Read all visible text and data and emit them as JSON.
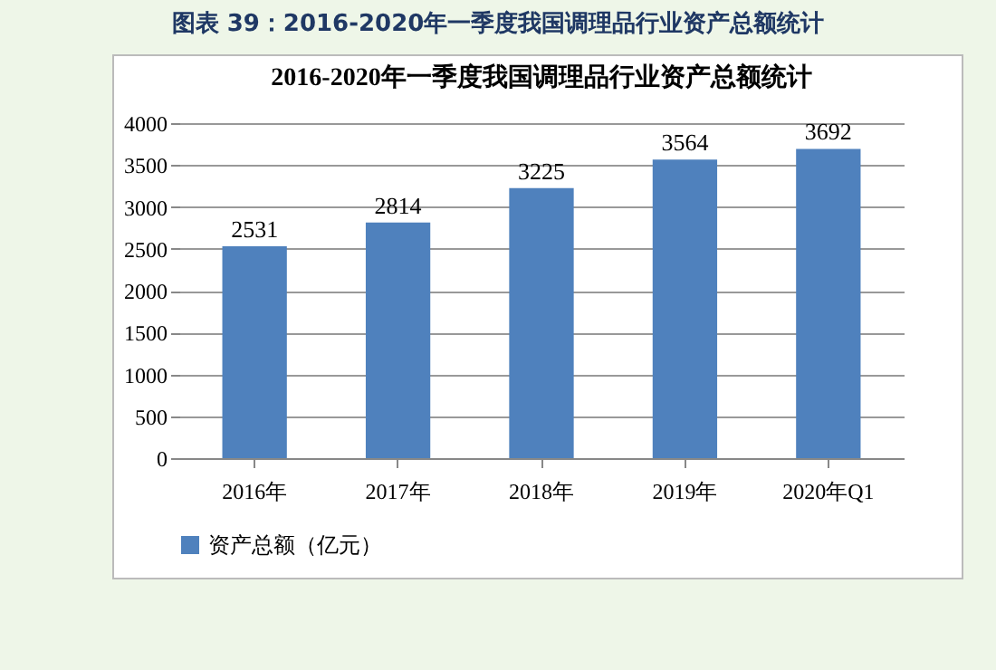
{
  "chart_data": {
    "type": "bar",
    "title": "图表 39：2016-2020年一季度我国调理品行业资产总额统计",
    "subtitle": "2016-2020年一季度我国调理品行业资产总额统计",
    "categories": [
      "2016年",
      "2017年",
      "2018年",
      "2019年",
      "2020年Q1"
    ],
    "series": [
      {
        "name": "资产总额（亿元）",
        "color": "#4f81bd",
        "values": [
          2531,
          2814,
          3225,
          3564,
          3692
        ]
      }
    ],
    "ylim": [
      0,
      4000
    ],
    "yticks": [
      0,
      500,
      1000,
      1500,
      2000,
      2500,
      3000,
      3500,
      4000
    ],
    "grid": "y",
    "legend": "bottom",
    "data_labels": true
  }
}
